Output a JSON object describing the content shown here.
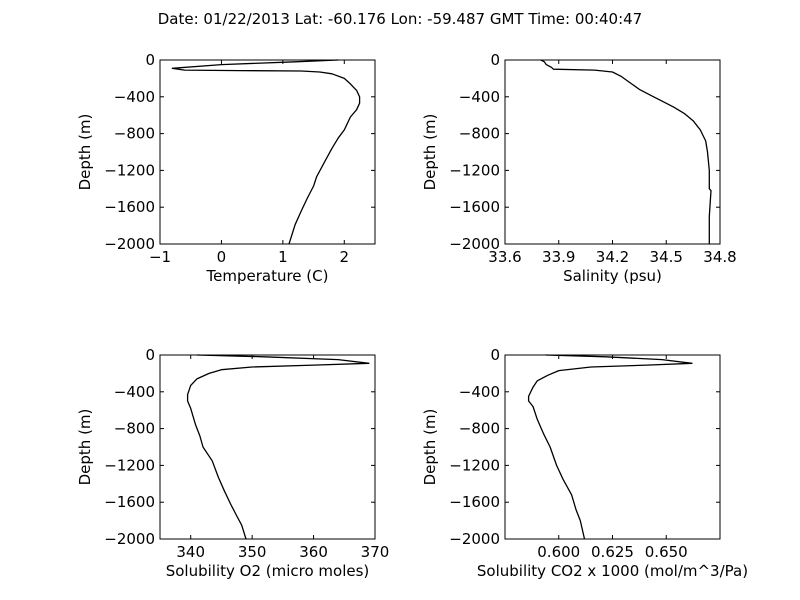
{
  "figure": {
    "title": "Date: 01/22/2013  Lat:  -60.176 Lon:  -59.487  GMT Time: 00:40:47"
  },
  "chart_data": [
    {
      "type": "line",
      "xlabel": "Temperature (C)",
      "ylabel": "Depth (m)",
      "xlim": [
        -1,
        2.5
      ],
      "ylim": [
        -2000,
        0
      ],
      "xticks": [
        -1,
        0,
        1,
        2
      ],
      "xtick_labels": [
        "−1",
        "0",
        "1",
        "2"
      ],
      "yticks": [
        0,
        -400,
        -800,
        -1200,
        -1600,
        -2000
      ],
      "ytick_labels": [
        "0",
        "−400",
        "−800",
        "−1200",
        "−1600",
        "−2000"
      ],
      "grid": false,
      "series": [
        {
          "x": [
            1.9,
            1.2,
            0.0,
            -0.8,
            -0.6,
            0.3,
            1.3,
            1.6,
            1.8,
            2.0,
            2.1,
            2.2,
            2.25,
            2.25,
            2.2,
            2.1,
            2.0,
            1.9,
            1.8,
            1.7,
            1.55,
            1.5,
            1.4,
            1.3,
            1.2,
            1.1
          ],
          "y": [
            0,
            -20,
            -50,
            -90,
            -110,
            -115,
            -120,
            -130,
            -150,
            -200,
            -260,
            -330,
            -400,
            -470,
            -540,
            -620,
            -760,
            -850,
            -960,
            -1080,
            -1270,
            -1370,
            -1500,
            -1640,
            -1790,
            -2000
          ]
        }
      ]
    },
    {
      "type": "line",
      "xlabel": "Salinity (psu)",
      "ylabel": "Depth (m)",
      "xlim": [
        33.6,
        34.8
      ],
      "ylim": [
        -2000,
        0
      ],
      "xticks": [
        33.6,
        33.9,
        34.2,
        34.5,
        34.8
      ],
      "xtick_labels": [
        "33.6",
        "33.9",
        "34.2",
        "34.5",
        "34.8"
      ],
      "yticks": [
        0,
        -400,
        -800,
        -1200,
        -1600,
        -2000
      ],
      "ytick_labels": [
        "0",
        "−400",
        "−800",
        "−1200",
        "−1600",
        "−2000"
      ],
      "grid": false,
      "series": [
        {
          "x": [
            33.8,
            33.82,
            33.83,
            33.86,
            33.87,
            34.1,
            34.2,
            34.25,
            34.3,
            34.35,
            34.42,
            34.48,
            34.54,
            34.6,
            34.65,
            34.69,
            34.72,
            34.73,
            34.74,
            34.74,
            34.75,
            34.74,
            34.74
          ],
          "y": [
            0,
            -20,
            -50,
            -80,
            -100,
            -110,
            -130,
            -180,
            -250,
            -320,
            -390,
            -450,
            -510,
            -580,
            -660,
            -760,
            -880,
            -1000,
            -1200,
            -1400,
            -1420,
            -1700,
            -2000
          ]
        }
      ]
    },
    {
      "type": "line",
      "xlabel": "Solubility O2 (micro moles)",
      "ylabel": "Depth (m)",
      "xlim": [
        335,
        370
      ],
      "ylim": [
        -2000,
        0
      ],
      "xticks": [
        340,
        350,
        360,
        370
      ],
      "xtick_labels": [
        "340",
        "350",
        "360",
        "370"
      ],
      "yticks": [
        0,
        -400,
        -800,
        -1200,
        -1600,
        -2000
      ],
      "ytick_labels": [
        "0",
        "−400",
        "−800",
        "−1200",
        "−1600",
        "−2000"
      ],
      "grid": false,
      "series": [
        {
          "x": [
            341,
            352,
            364,
            369,
            360,
            350,
            345,
            343,
            341,
            340,
            339.5,
            339.5,
            340,
            340.8,
            341.5,
            342,
            343.5,
            344.5,
            345.5,
            346.5,
            347.5,
            348.3,
            349
          ],
          "y": [
            0,
            -20,
            -50,
            -90,
            -110,
            -130,
            -160,
            -200,
            -260,
            -330,
            -430,
            -500,
            -580,
            -760,
            -880,
            -1000,
            -1150,
            -1330,
            -1480,
            -1620,
            -1750,
            -1850,
            -2000
          ]
        }
      ]
    },
    {
      "type": "line",
      "xlabel": "Solubility CO2 x 1000 (mol/m^3/Pa)",
      "ylabel": "Depth (m)",
      "xlim": [
        0.575,
        0.675
      ],
      "ylim": [
        -2000,
        0
      ],
      "xticks": [
        0.6,
        0.625,
        0.65
      ],
      "xtick_labels": [
        "0.600",
        "0.625",
        "0.650"
      ],
      "yticks": [
        0,
        -400,
        -800,
        -1200,
        -1600,
        -2000
      ],
      "ytick_labels": [
        "0",
        "−400",
        "−800",
        "−1200",
        "−1600",
        "−2000"
      ],
      "grid": false,
      "series": [
        {
          "x": [
            0.594,
            0.622,
            0.648,
            0.662,
            0.641,
            0.615,
            0.6,
            0.595,
            0.59,
            0.588,
            0.586,
            0.586,
            0.588,
            0.59,
            0.593,
            0.596,
            0.599,
            0.602,
            0.606,
            0.608,
            0.61,
            0.612
          ],
          "y": [
            0,
            -20,
            -50,
            -90,
            -110,
            -130,
            -170,
            -220,
            -280,
            -350,
            -450,
            -500,
            -560,
            -700,
            -860,
            -1000,
            -1200,
            -1350,
            -1520,
            -1680,
            -1800,
            -2000
          ]
        }
      ]
    }
  ]
}
